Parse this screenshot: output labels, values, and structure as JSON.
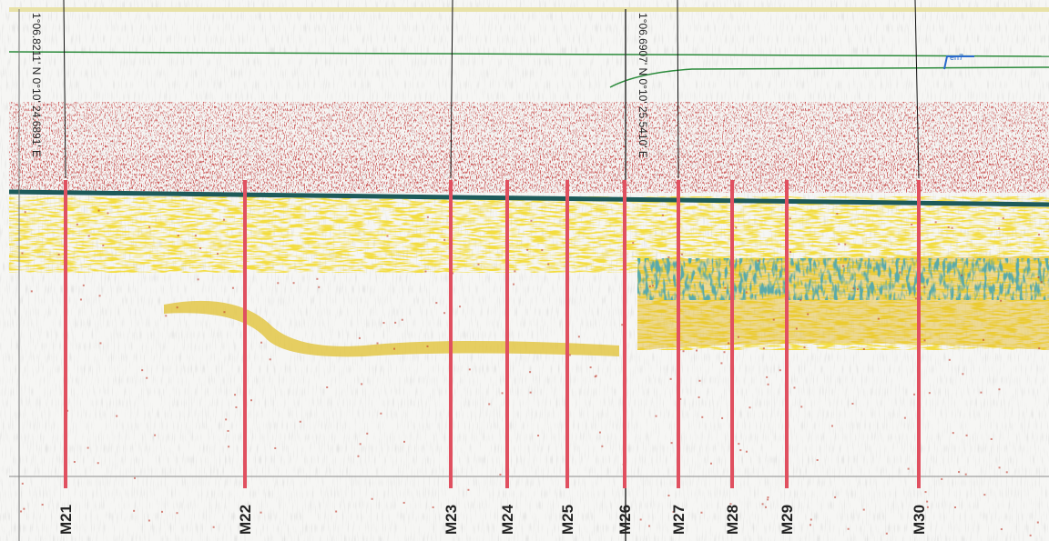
{
  "echogram": {
    "coordinates": [
      "1°06.8211' N 0°10' 24.6891' E",
      "1°06.6907' N 0°10' 25.5410' E"
    ],
    "line_label": "en7",
    "markers": [
      "M21",
      "M22",
      "M23",
      "M24",
      "M25",
      "M26",
      "M27",
      "M28",
      "M29",
      "M30"
    ]
  }
}
